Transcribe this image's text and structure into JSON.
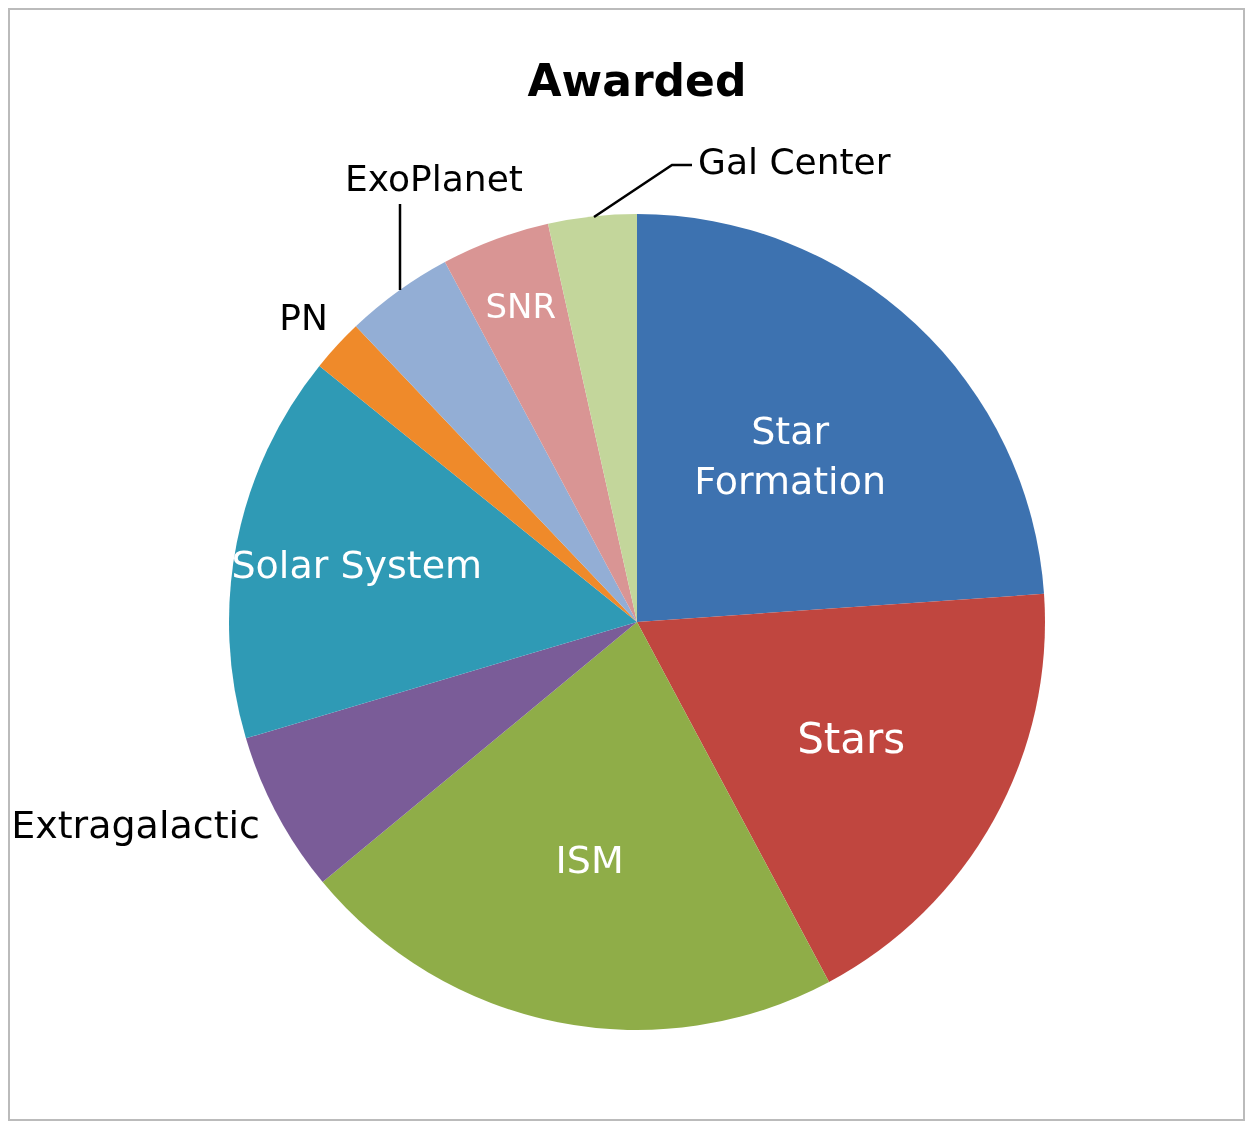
{
  "chart_data": {
    "type": "pie",
    "title": "Awarded",
    "categories": [
      "Star Formation",
      "Stars",
      "ISM",
      "Extragalactic",
      "Solar System",
      "PN",
      "ExoPlanet",
      "SNR",
      "Gal Center"
    ],
    "values": [
      23.9,
      18.3,
      21.8,
      6.4,
      15.4,
      2.1,
      4.3,
      4.3,
      3.5
    ],
    "colors": [
      "#3d72b0",
      "#c0463f",
      "#8fad48",
      "#7a5c98",
      "#2f9ab5",
      "#ef8a2a",
      "#93aed5",
      "#d99594",
      "#c3d69b"
    ]
  }
}
